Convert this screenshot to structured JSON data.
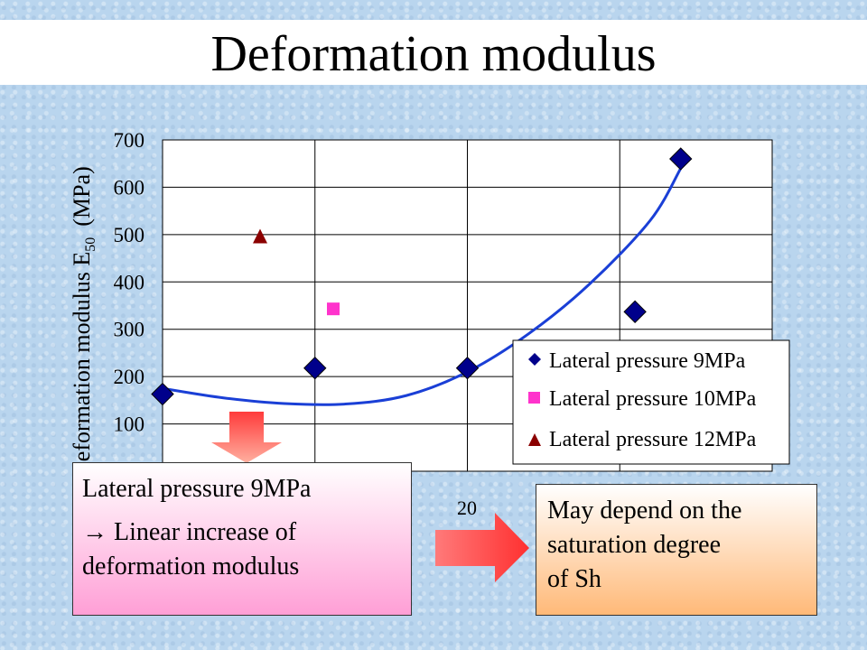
{
  "slide": {
    "title": "Deformation modulus"
  },
  "chart_data": {
    "type": "scatter",
    "ylabel_main": "Deformation modulus E",
    "ylabel_sub": "50",
    "ylabel_unit": "(MPa)",
    "ylim": [
      0,
      700
    ],
    "yticks": [
      100,
      200,
      300,
      400,
      500,
      600,
      700
    ],
    "xlim": [
      10,
      30
    ],
    "xtick_visible": "20",
    "grid": true,
    "legend_position": "bottom-right",
    "series": [
      {
        "name": "Lateral pressure 9MPa",
        "marker": "diamond",
        "color": "#00008b",
        "points": [
          [
            10,
            163
          ],
          [
            15,
            218
          ],
          [
            20,
            218
          ],
          [
            25.5,
            337
          ],
          [
            27,
            660
          ]
        ]
      },
      {
        "name": "Lateral pressure 10MPa",
        "marker": "square",
        "color": "#ff33cc",
        "points": [
          [
            15.6,
            343
          ]
        ]
      },
      {
        "name": "Lateral pressure 12MPa",
        "marker": "triangle",
        "color": "#8b0000",
        "points": [
          [
            13.2,
            495
          ]
        ]
      }
    ],
    "trendline": {
      "series": "Lateral pressure 9MPa",
      "color": "#1a3fd6",
      "points": [
        [
          10,
          175
        ],
        [
          12,
          155
        ],
        [
          14,
          143
        ],
        [
          16,
          142
        ],
        [
          18,
          160
        ],
        [
          20,
          210
        ],
        [
          22,
          290
        ],
        [
          24,
          395
        ],
        [
          26,
          530
        ],
        [
          27,
          640
        ]
      ]
    }
  },
  "callouts": {
    "left": {
      "line1": "Lateral pressure 9MPa",
      "line2": "→ Linear increase of",
      "line3": "deformation modulus",
      "color_top": "#ffffff",
      "color_bottom": "#ff9fd6"
    },
    "right": {
      "line1": "May depend on the",
      "line2": "saturation degree",
      "line3": "of Sh",
      "color_top": "#ffffff",
      "color_bottom": "#ffb978"
    },
    "arrow_color": "#ff4f4f"
  }
}
